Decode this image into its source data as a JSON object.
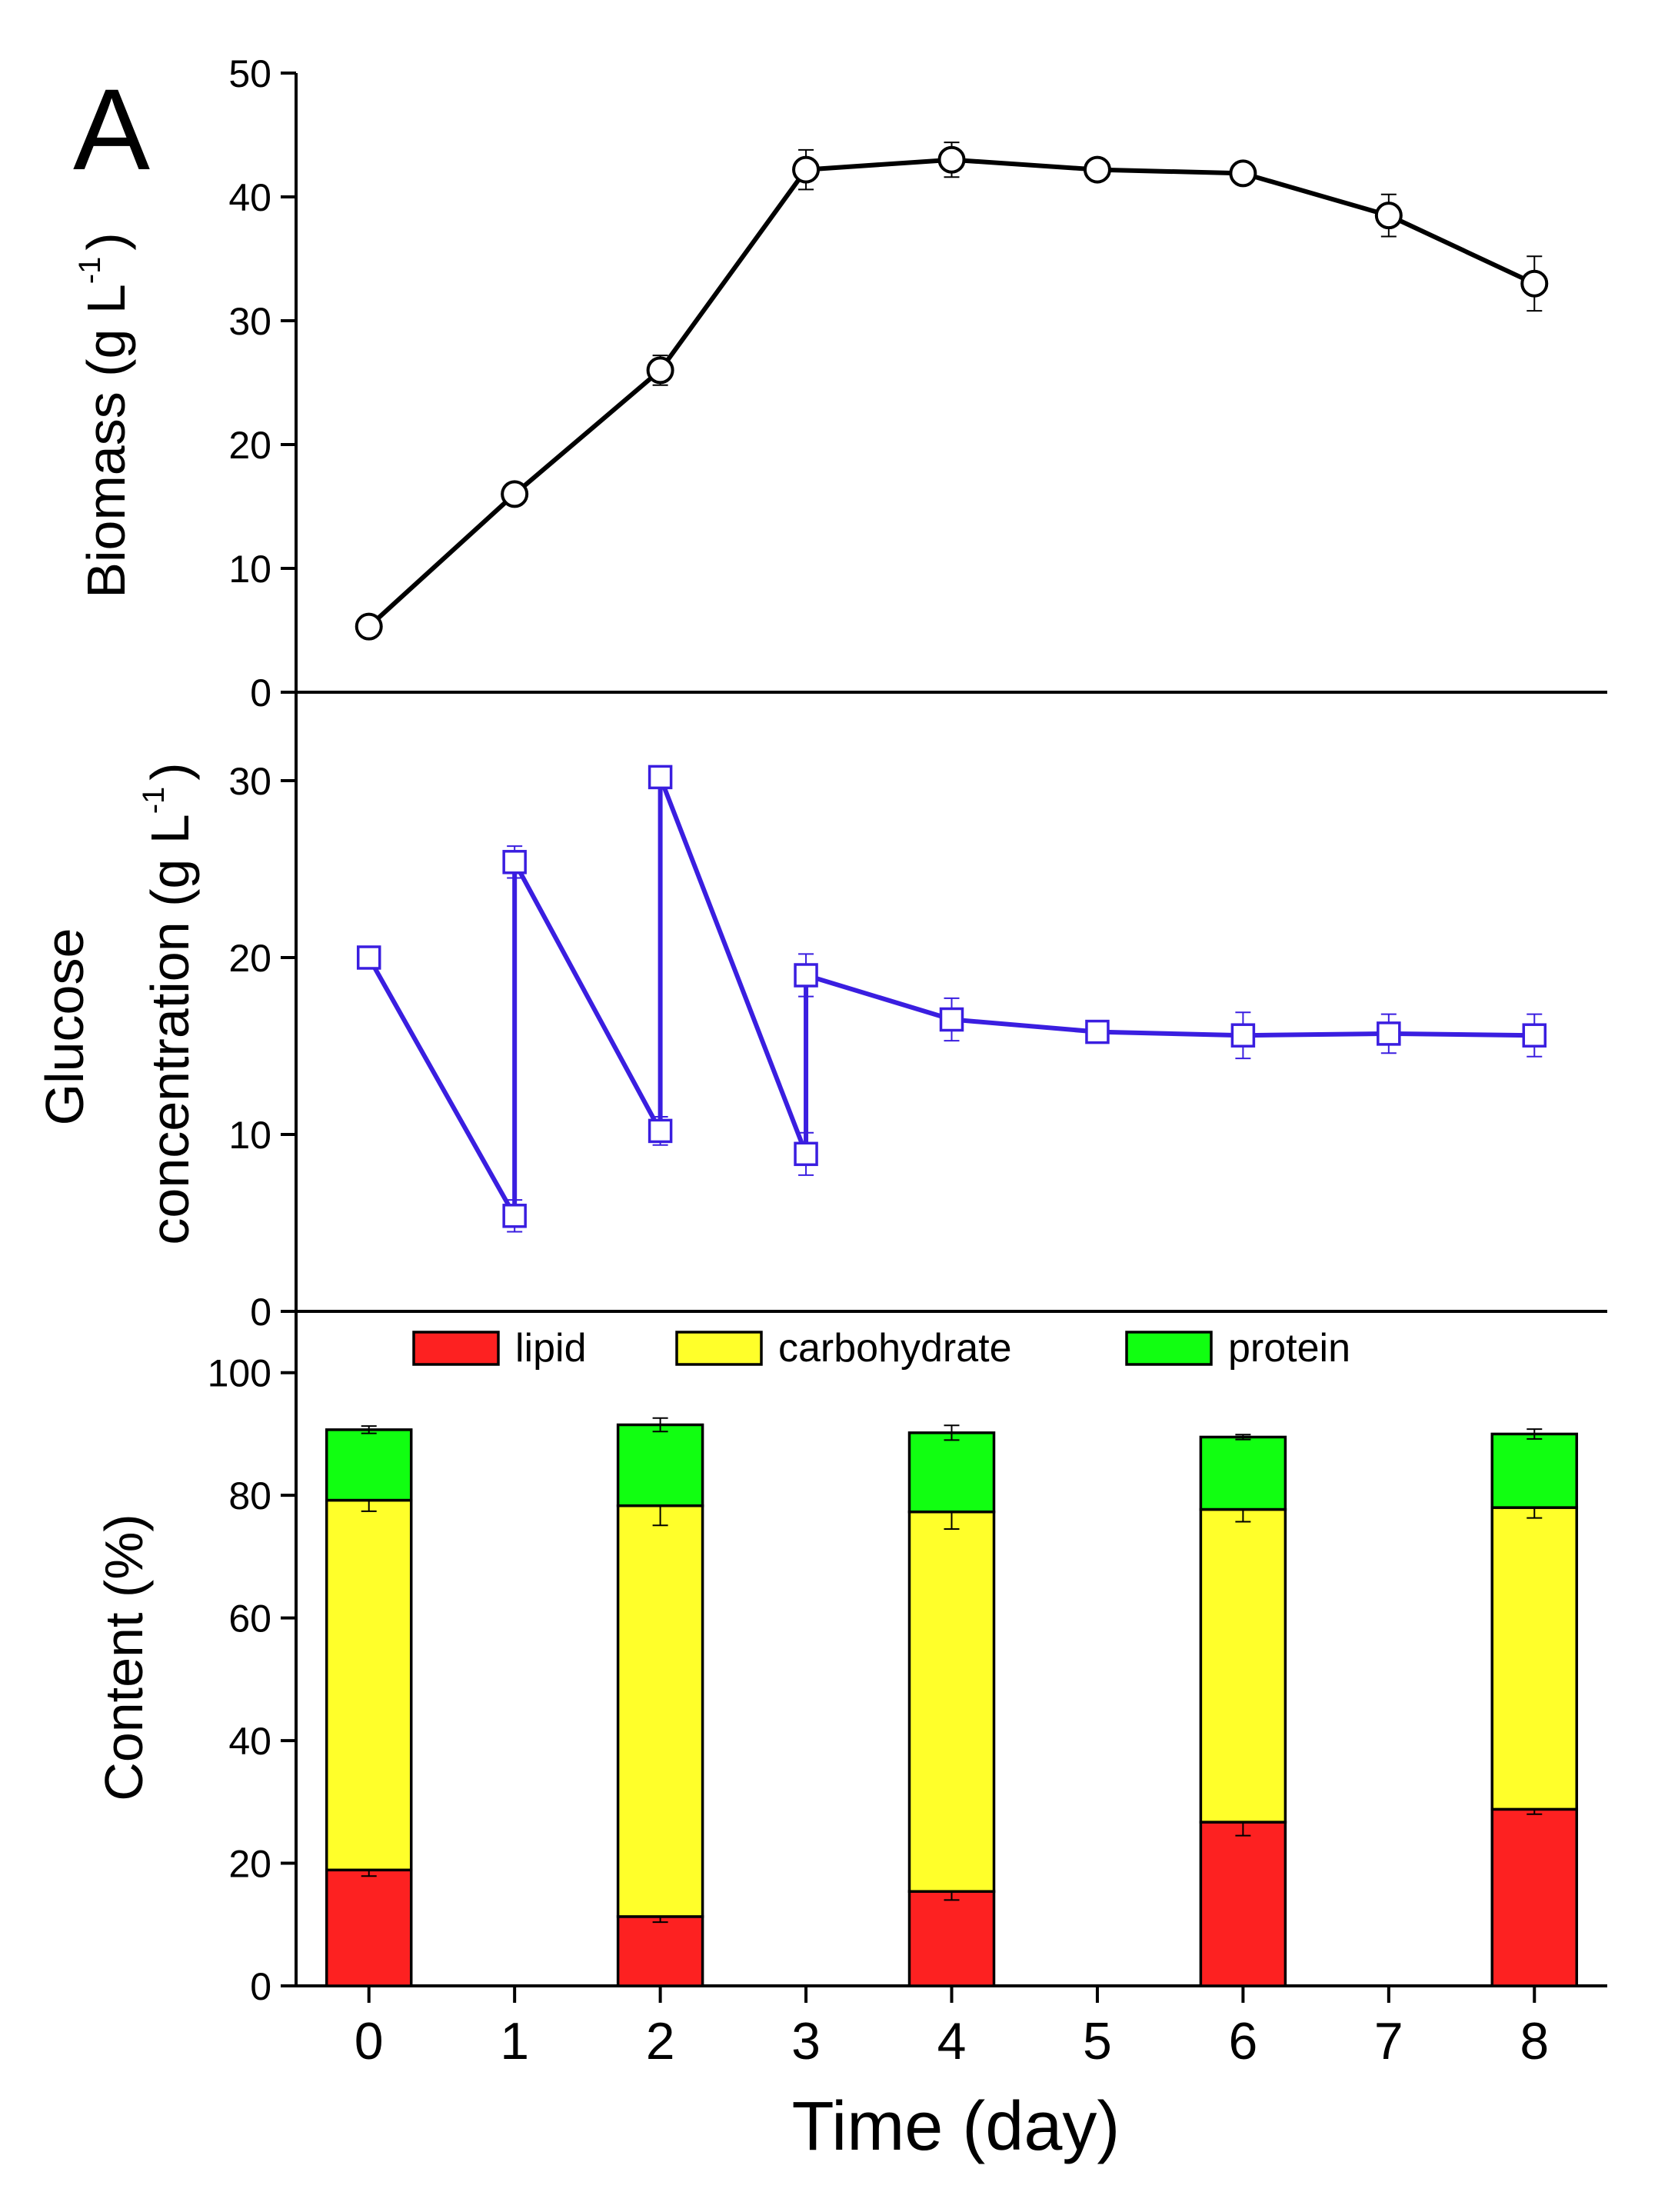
{
  "panel_label": "A",
  "legend_markers": {
    "biomass": "open-circle",
    "glucose": "open-square"
  },
  "chart_data": [
    {
      "type": "line",
      "name": "biomass-panel",
      "xlabel": "",
      "ylabel_main": "Biomass (g L",
      "ylabel_sup": "-1",
      "ylabel_close": ")",
      "ylim": [
        0,
        50
      ],
      "yticks": [
        0,
        10,
        20,
        30,
        40,
        50
      ],
      "xlim": [
        -0.5,
        8.5
      ],
      "grid": false,
      "color": "#000000",
      "series": [
        {
          "name": "",
          "x": [
            0,
            1,
            2,
            3,
            4,
            5,
            6,
            7,
            8
          ],
          "y": [
            5.3,
            16.0,
            26.0,
            42.2,
            43.0,
            42.2,
            41.9,
            38.5,
            33.0
          ],
          "error": [
            0.6,
            0.5,
            1.2,
            1.6,
            1.4,
            0.7,
            0.8,
            1.7,
            2.2
          ]
        }
      ]
    },
    {
      "type": "line",
      "name": "glucose-panel",
      "xlabel": "",
      "ylabel_line1": "Glucose",
      "ylabel_line2_main": "concentration (g L",
      "ylabel_sup": "-1",
      "ylabel_close": ")",
      "ylim": [
        0,
        35
      ],
      "yticks": [
        0,
        10,
        20,
        30
      ],
      "xlim": [
        -0.5,
        8.5
      ],
      "grid": false,
      "color": "#3a1ee0",
      "series": [
        {
          "name": "",
          "x": [
            0,
            1,
            1,
            2,
            2,
            3,
            3,
            4,
            5,
            6,
            7,
            8
          ],
          "y": [
            20.0,
            5.4,
            25.4,
            10.2,
            30.2,
            8.9,
            19.0,
            16.5,
            15.8,
            15.6,
            15.7,
            15.6
          ],
          "error": [
            0.3,
            0.9,
            0.9,
            0.8,
            0.5,
            1.2,
            1.2,
            1.2,
            0.4,
            1.3,
            1.1,
            1.2
          ]
        }
      ]
    },
    {
      "type": "bar",
      "stacked": true,
      "name": "content-panel",
      "xlabel": "Time (day)",
      "ylabel": "Content (%)",
      "ylim": [
        0,
        110
      ],
      "yticks": [
        0,
        20,
        40,
        60,
        80,
        100
      ],
      "xlim": [
        -0.5,
        8.5
      ],
      "xticks": [
        "0",
        "1",
        "2",
        "3",
        "4",
        "5",
        "6",
        "7",
        "8"
      ],
      "grid": false,
      "legend": "top",
      "bar_x": [
        0,
        2,
        4,
        6,
        8
      ],
      "series": [
        {
          "name": "lipid",
          "color": "#fd2121",
          "values": [
            18.9,
            11.3,
            15.4,
            26.7,
            28.8
          ],
          "error": [
            1.0,
            0.9,
            1.4,
            2.2,
            0.8
          ]
        },
        {
          "name": "carbohydrate",
          "color": "#ffff2a",
          "values": [
            60.3,
            67.0,
            61.9,
            51.0,
            49.2
          ],
          "error": [
            1.8,
            3.2,
            2.8,
            2.0,
            1.7
          ]
        },
        {
          "name": "protein",
          "color": "#11ff11",
          "values": [
            11.5,
            13.2,
            12.9,
            11.8,
            12.0
          ],
          "error": [
            0.6,
            1.1,
            1.2,
            0.4,
            0.8
          ]
        }
      ]
    }
  ]
}
